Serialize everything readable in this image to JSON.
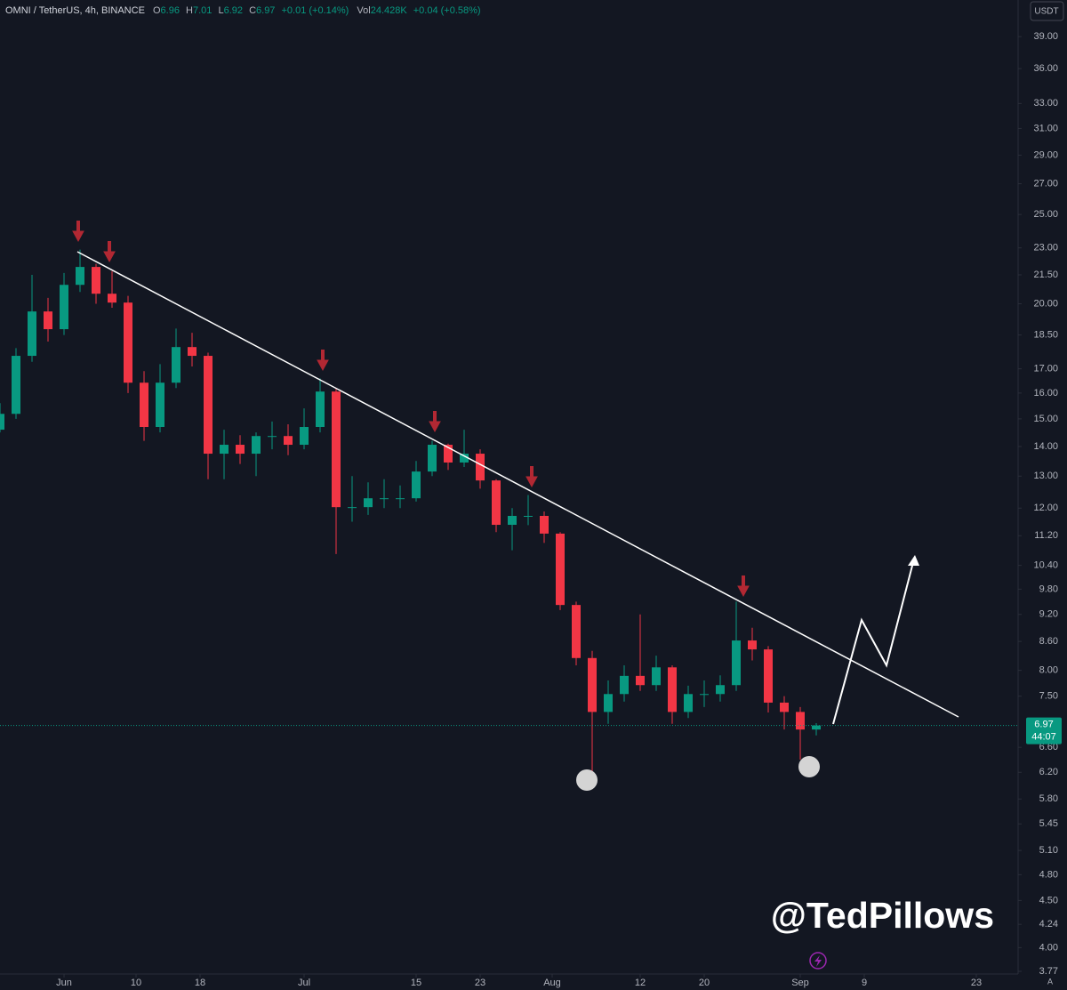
{
  "chart_data": {
    "type": "candlestick",
    "header": {
      "symbol": "OMNI / TetherUS, 4h, BINANCE",
      "ohlc_labels": [
        "O",
        "H",
        "L",
        "C"
      ],
      "ohlc": [
        6.96,
        7.01,
        6.92,
        6.97
      ],
      "change": "+0.01 (+0.14%)",
      "volume_label": "Vol",
      "volume": "24.428K",
      "volume_change": "+0.04 (+0.58%)"
    },
    "currency": "USDT",
    "last_price": 6.97,
    "countdown": "44:07",
    "watermark": "@TedPillows",
    "log_scale": true,
    "grid": false,
    "up_color": "#089981",
    "down_color": "#f23645",
    "x": [
      "05-24",
      "05-26",
      "05-28",
      "05-30",
      "06-01",
      "06-03",
      "06-05",
      "06-07",
      "06-09",
      "06-11",
      "06-13",
      "06-15",
      "06-17",
      "06-19",
      "06-21",
      "06-23",
      "06-25",
      "06-27",
      "06-29",
      "07-01",
      "07-03",
      "07-05",
      "07-07",
      "07-09",
      "07-11",
      "07-13",
      "07-15",
      "07-17",
      "07-19",
      "07-21",
      "07-23",
      "07-25",
      "07-27",
      "07-29",
      "07-31",
      "08-02",
      "08-04",
      "08-06",
      "08-08",
      "08-10",
      "08-12",
      "08-14",
      "08-16",
      "08-18",
      "08-20",
      "08-22",
      "08-24",
      "08-26",
      "08-28",
      "08-30",
      "09-01",
      "09-03"
    ],
    "open": [
      14.6,
      15.19,
      17.56,
      19.62,
      18.77,
      20.97,
      21.93,
      20.51,
      20.06,
      16.42,
      14.7,
      16.42,
      17.95,
      17.56,
      13.75,
      14.06,
      13.75,
      14.37,
      14.37,
      14.06,
      14.7,
      16.06,
      12.03,
      12.03,
      12.3,
      12.3,
      12.3,
      13.15,
      14.06,
      13.45,
      13.75,
      12.86,
      11.51,
      11.77,
      11.77,
      11.26,
      9.42,
      8.25,
      7.21,
      7.54,
      7.89,
      7.71,
      8.06,
      7.21,
      7.54,
      7.54,
      7.71,
      8.62,
      8.43,
      7.38,
      7.21,
      6.9
    ],
    "high": [
      15.6,
      17.9,
      21.5,
      20.3,
      21.6,
      22.9,
      22.1,
      21.7,
      20.4,
      16.9,
      17.2,
      18.8,
      18.6,
      17.7,
      14.6,
      14.4,
      14.5,
      14.9,
      14.8,
      15.4,
      16.6,
      16.2,
      13.0,
      12.8,
      12.9,
      12.7,
      13.5,
      14.2,
      14.1,
      14.6,
      13.9,
      12.9,
      12.0,
      12.4,
      11.9,
      11.3,
      9.5,
      8.4,
      7.8,
      8.1,
      9.2,
      8.3,
      8.1,
      7.7,
      7.8,
      7.9,
      9.5,
      8.9,
      8.5,
      7.5,
      7.3,
      7.01
    ],
    "low": [
      14.5,
      15.0,
      17.3,
      18.2,
      18.5,
      20.6,
      20.0,
      19.8,
      16.0,
      14.2,
      14.5,
      16.2,
      17.1,
      12.9,
      12.9,
      13.4,
      13.0,
      13.9,
      13.7,
      13.9,
      14.5,
      10.7,
      11.6,
      11.8,
      12.0,
      12.0,
      12.2,
      13.0,
      13.2,
      13.3,
      12.6,
      11.3,
      10.8,
      11.5,
      11.0,
      9.3,
      8.1,
      5.97,
      7.0,
      7.4,
      7.6,
      7.6,
      7.0,
      7.1,
      7.3,
      7.4,
      7.6,
      8.2,
      7.2,
      6.9,
      6.4,
      6.8
    ],
    "close": [
      15.19,
      17.56,
      19.62,
      18.77,
      20.97,
      21.93,
      20.51,
      20.06,
      16.42,
      14.7,
      16.42,
      17.95,
      17.56,
      13.75,
      14.06,
      13.75,
      14.37,
      14.37,
      14.06,
      14.7,
      16.06,
      12.03,
      12.03,
      12.3,
      12.3,
      12.3,
      13.15,
      14.06,
      13.45,
      13.75,
      12.86,
      11.51,
      11.77,
      11.77,
      11.26,
      9.42,
      8.25,
      7.21,
      7.54,
      7.89,
      7.71,
      8.06,
      7.21,
      7.54,
      7.54,
      7.71,
      8.62,
      8.43,
      7.38,
      7.21,
      6.9,
      6.97
    ],
    "xlim": [
      "05-24",
      "09-28"
    ],
    "xticks": [
      {
        "value": "06-01",
        "label": "Jun"
      },
      {
        "value": "06-10",
        "label": "10"
      },
      {
        "value": "06-18",
        "label": "18"
      },
      {
        "value": "07-01",
        "label": "Jul"
      },
      {
        "value": "07-15",
        "label": "15"
      },
      {
        "value": "07-23",
        "label": "23"
      },
      {
        "value": "08-01",
        "label": "Aug"
      },
      {
        "value": "08-12",
        "label": "12"
      },
      {
        "value": "08-20",
        "label": "20"
      },
      {
        "value": "09-01",
        "label": "Sep"
      },
      {
        "value": "09-09",
        "label": "9"
      },
      {
        "value": "09-23",
        "label": "23"
      }
    ],
    "ylim": [
      3.745,
      42.74
    ],
    "yticks": [
      {
        "value": 39,
        "label": "39.00"
      },
      {
        "value": 36,
        "label": "36.00"
      },
      {
        "value": 33,
        "label": "33.00"
      },
      {
        "value": 31,
        "label": "31.00"
      },
      {
        "value": 29,
        "label": "29.00"
      },
      {
        "value": 27,
        "label": "27.00"
      },
      {
        "value": 25,
        "label": "25.00"
      },
      {
        "value": 23,
        "label": "23.00"
      },
      {
        "value": 21.5,
        "label": "21.50"
      },
      {
        "value": 20,
        "label": "20.00"
      },
      {
        "value": 18.5,
        "label": "18.50"
      },
      {
        "value": 17,
        "label": "17.00"
      },
      {
        "value": 16,
        "label": "16.00"
      },
      {
        "value": 15,
        "label": "15.00"
      },
      {
        "value": 14,
        "label": "14.00"
      },
      {
        "value": 13,
        "label": "13.00"
      },
      {
        "value": 12,
        "label": "12.00"
      },
      {
        "value": 11.2,
        "label": "11.20"
      },
      {
        "value": 10.4,
        "label": "10.40"
      },
      {
        "value": 9.8,
        "label": "9.80"
      },
      {
        "value": 9.2,
        "label": "9.20"
      },
      {
        "value": 8.6,
        "label": "8.60"
      },
      {
        "value": 8,
        "label": "8.00"
      },
      {
        "value": 7.5,
        "label": "7.50"
      },
      {
        "value": 6.6,
        "label": "6.60"
      },
      {
        "value": 6.2,
        "label": "6.20"
      },
      {
        "value": 5.8,
        "label": "5.80"
      },
      5.45,
      {
        "value": 5.1,
        "label": "5.10"
      },
      {
        "value": 4.8,
        "label": "4.80"
      },
      {
        "value": 4.5,
        "label": "4.50"
      },
      4.24,
      {
        "value": 4,
        "label": "4.00"
      },
      3.77
    ]
  }
}
